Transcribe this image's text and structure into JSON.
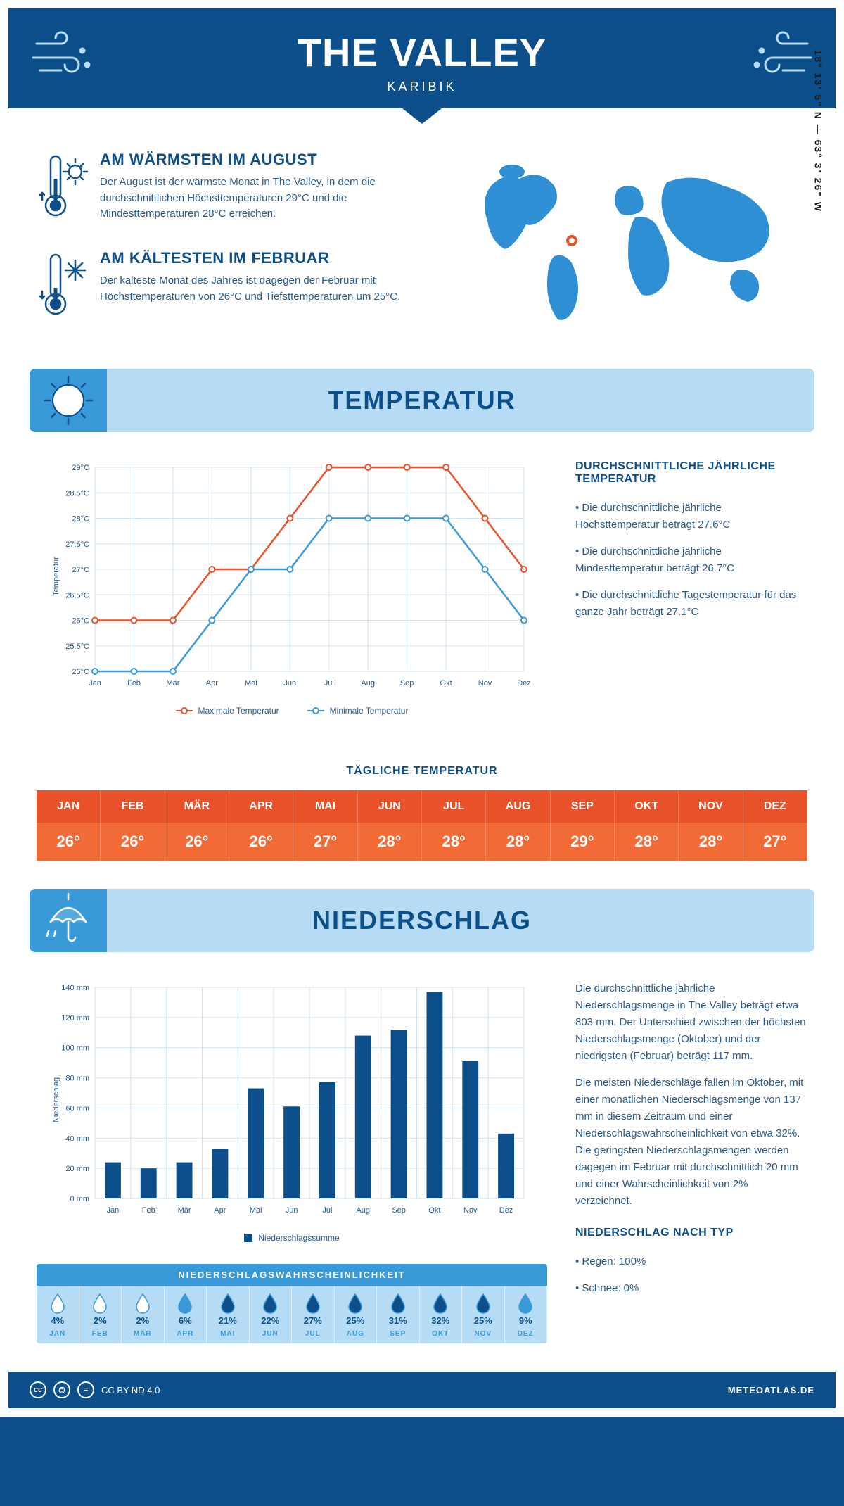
{
  "header": {
    "title": "THE VALLEY",
    "subtitle": "KARIBIK"
  },
  "coords": "18° 13' 5\" N — 63° 3' 26\" W",
  "facts": {
    "warm": {
      "title": "AM WÄRMSTEN IM AUGUST",
      "text": "Der August ist der wärmste Monat in The Valley, in dem die durchschnittlichen Höchsttemperaturen 29°C und die Mindesttemperaturen 28°C erreichen."
    },
    "cold": {
      "title": "AM KÄLTESTEN IM FEBRUAR",
      "text": "Der kälteste Monat des Jahres ist dagegen der Februar mit Höchsttemperaturen von 26°C und Tiefsttemperaturen um 25°C."
    }
  },
  "sections": {
    "temperature": "TEMPERATUR",
    "precipitation": "NIEDERSCHLAG"
  },
  "months_short": [
    "Jan",
    "Feb",
    "Mär",
    "Apr",
    "Mai",
    "Jun",
    "Jul",
    "Aug",
    "Sep",
    "Okt",
    "Nov",
    "Dez"
  ],
  "months_upper": [
    "JAN",
    "FEB",
    "MÄR",
    "APR",
    "MAI",
    "JUN",
    "JUL",
    "AUG",
    "SEP",
    "OKT",
    "NOV",
    "DEZ"
  ],
  "temp_chart": {
    "type": "line",
    "ylabel": "Temperatur",
    "ylim": [
      25,
      29
    ],
    "ytick_step": 0.5,
    "ytick_labels": [
      "25°C",
      "25.5°C",
      "26°C",
      "26.5°C",
      "27°C",
      "27.5°C",
      "28°C",
      "28.5°C",
      "29°C"
    ],
    "series": {
      "max": {
        "label": "Maximale Temperatur",
        "color": "#e8512a",
        "values": [
          26,
          26,
          26,
          27,
          27,
          28,
          29,
          29,
          29,
          29,
          28,
          27
        ]
      },
      "min": {
        "label": "Minimale Temperatur",
        "color": "#3a9ad9",
        "values": [
          25,
          25,
          25,
          26,
          27,
          27,
          28,
          28,
          28,
          28,
          27,
          26
        ]
      }
    },
    "marker": "circle",
    "grid_color": "#cfe3f3",
    "background": "#ffffff"
  },
  "temp_info": {
    "title": "DURCHSCHNITTLICHE JÄHRLICHE TEMPERATUR",
    "bullets": [
      "Die durchschnittliche jährliche Höchsttemperatur beträgt 27.6°C",
      "Die durchschnittliche jährliche Mindesttemperatur beträgt 26.7°C",
      "Die durchschnittliche Tagestemperatur für das ganze Jahr beträgt 27.1°C"
    ]
  },
  "daily_temp": {
    "title": "TÄGLICHE TEMPERATUR",
    "header_bg": "#e8512a",
    "body_bg": "#f26a36",
    "values": [
      "26°",
      "26°",
      "26°",
      "26°",
      "27°",
      "28°",
      "28°",
      "28°",
      "29°",
      "28°",
      "28°",
      "27°"
    ]
  },
  "precip_chart": {
    "type": "bar",
    "ylabel": "Niederschlag",
    "ylim": [
      0,
      140
    ],
    "ytick_step": 20,
    "ytick_labels": [
      "0 mm",
      "20 mm",
      "40 mm",
      "60 mm",
      "80 mm",
      "100 mm",
      "120 mm",
      "140 mm"
    ],
    "bar_color": "#0d4f8b",
    "grid_color": "#cfe3f3",
    "bar_width": 0.45,
    "values": [
      24,
      20,
      24,
      33,
      73,
      61,
      77,
      108,
      112,
      137,
      91,
      43
    ],
    "legend": "Niederschlagssumme"
  },
  "precip_info": {
    "p1": "Die durchschnittliche jährliche Niederschlagsmenge in The Valley beträgt etwa 803 mm. Der Unterschied zwischen der höchsten Niederschlagsmenge (Oktober) und der niedrigsten (Februar) beträgt 117 mm.",
    "p2": "Die meisten Niederschläge fallen im Oktober, mit einer monatlichen Niederschlagsmenge von 137 mm in diesem Zeitraum und einer Niederschlagswahrscheinlichkeit von etwa 32%. Die geringsten Niederschlagsmengen werden dagegen im Februar mit durchschnittlich 20 mm und einer Wahrscheinlichkeit von 2% verzeichnet.",
    "type_title": "NIEDERSCHLAG NACH TYP",
    "type_bullets": [
      "Regen: 100%",
      "Schnee: 0%"
    ]
  },
  "precip_prob": {
    "title": "NIEDERSCHLAGSWAHRSCHEINLICHKEIT",
    "levels": [
      "low",
      "low",
      "low",
      "mid",
      "dark",
      "dark",
      "dark",
      "dark",
      "dark",
      "dark",
      "dark",
      "mid"
    ],
    "values": [
      "4%",
      "2%",
      "2%",
      "6%",
      "21%",
      "22%",
      "27%",
      "25%",
      "31%",
      "32%",
      "25%",
      "9%"
    ],
    "fill_colors": {
      "low": "#ffffff",
      "mid": "#3a9ad9",
      "dark": "#0d4f8b"
    },
    "stroke_color": "#3a9ad9"
  },
  "footer": {
    "license": "CC BY-ND 4.0",
    "site": "METEOATLAS.DE"
  }
}
